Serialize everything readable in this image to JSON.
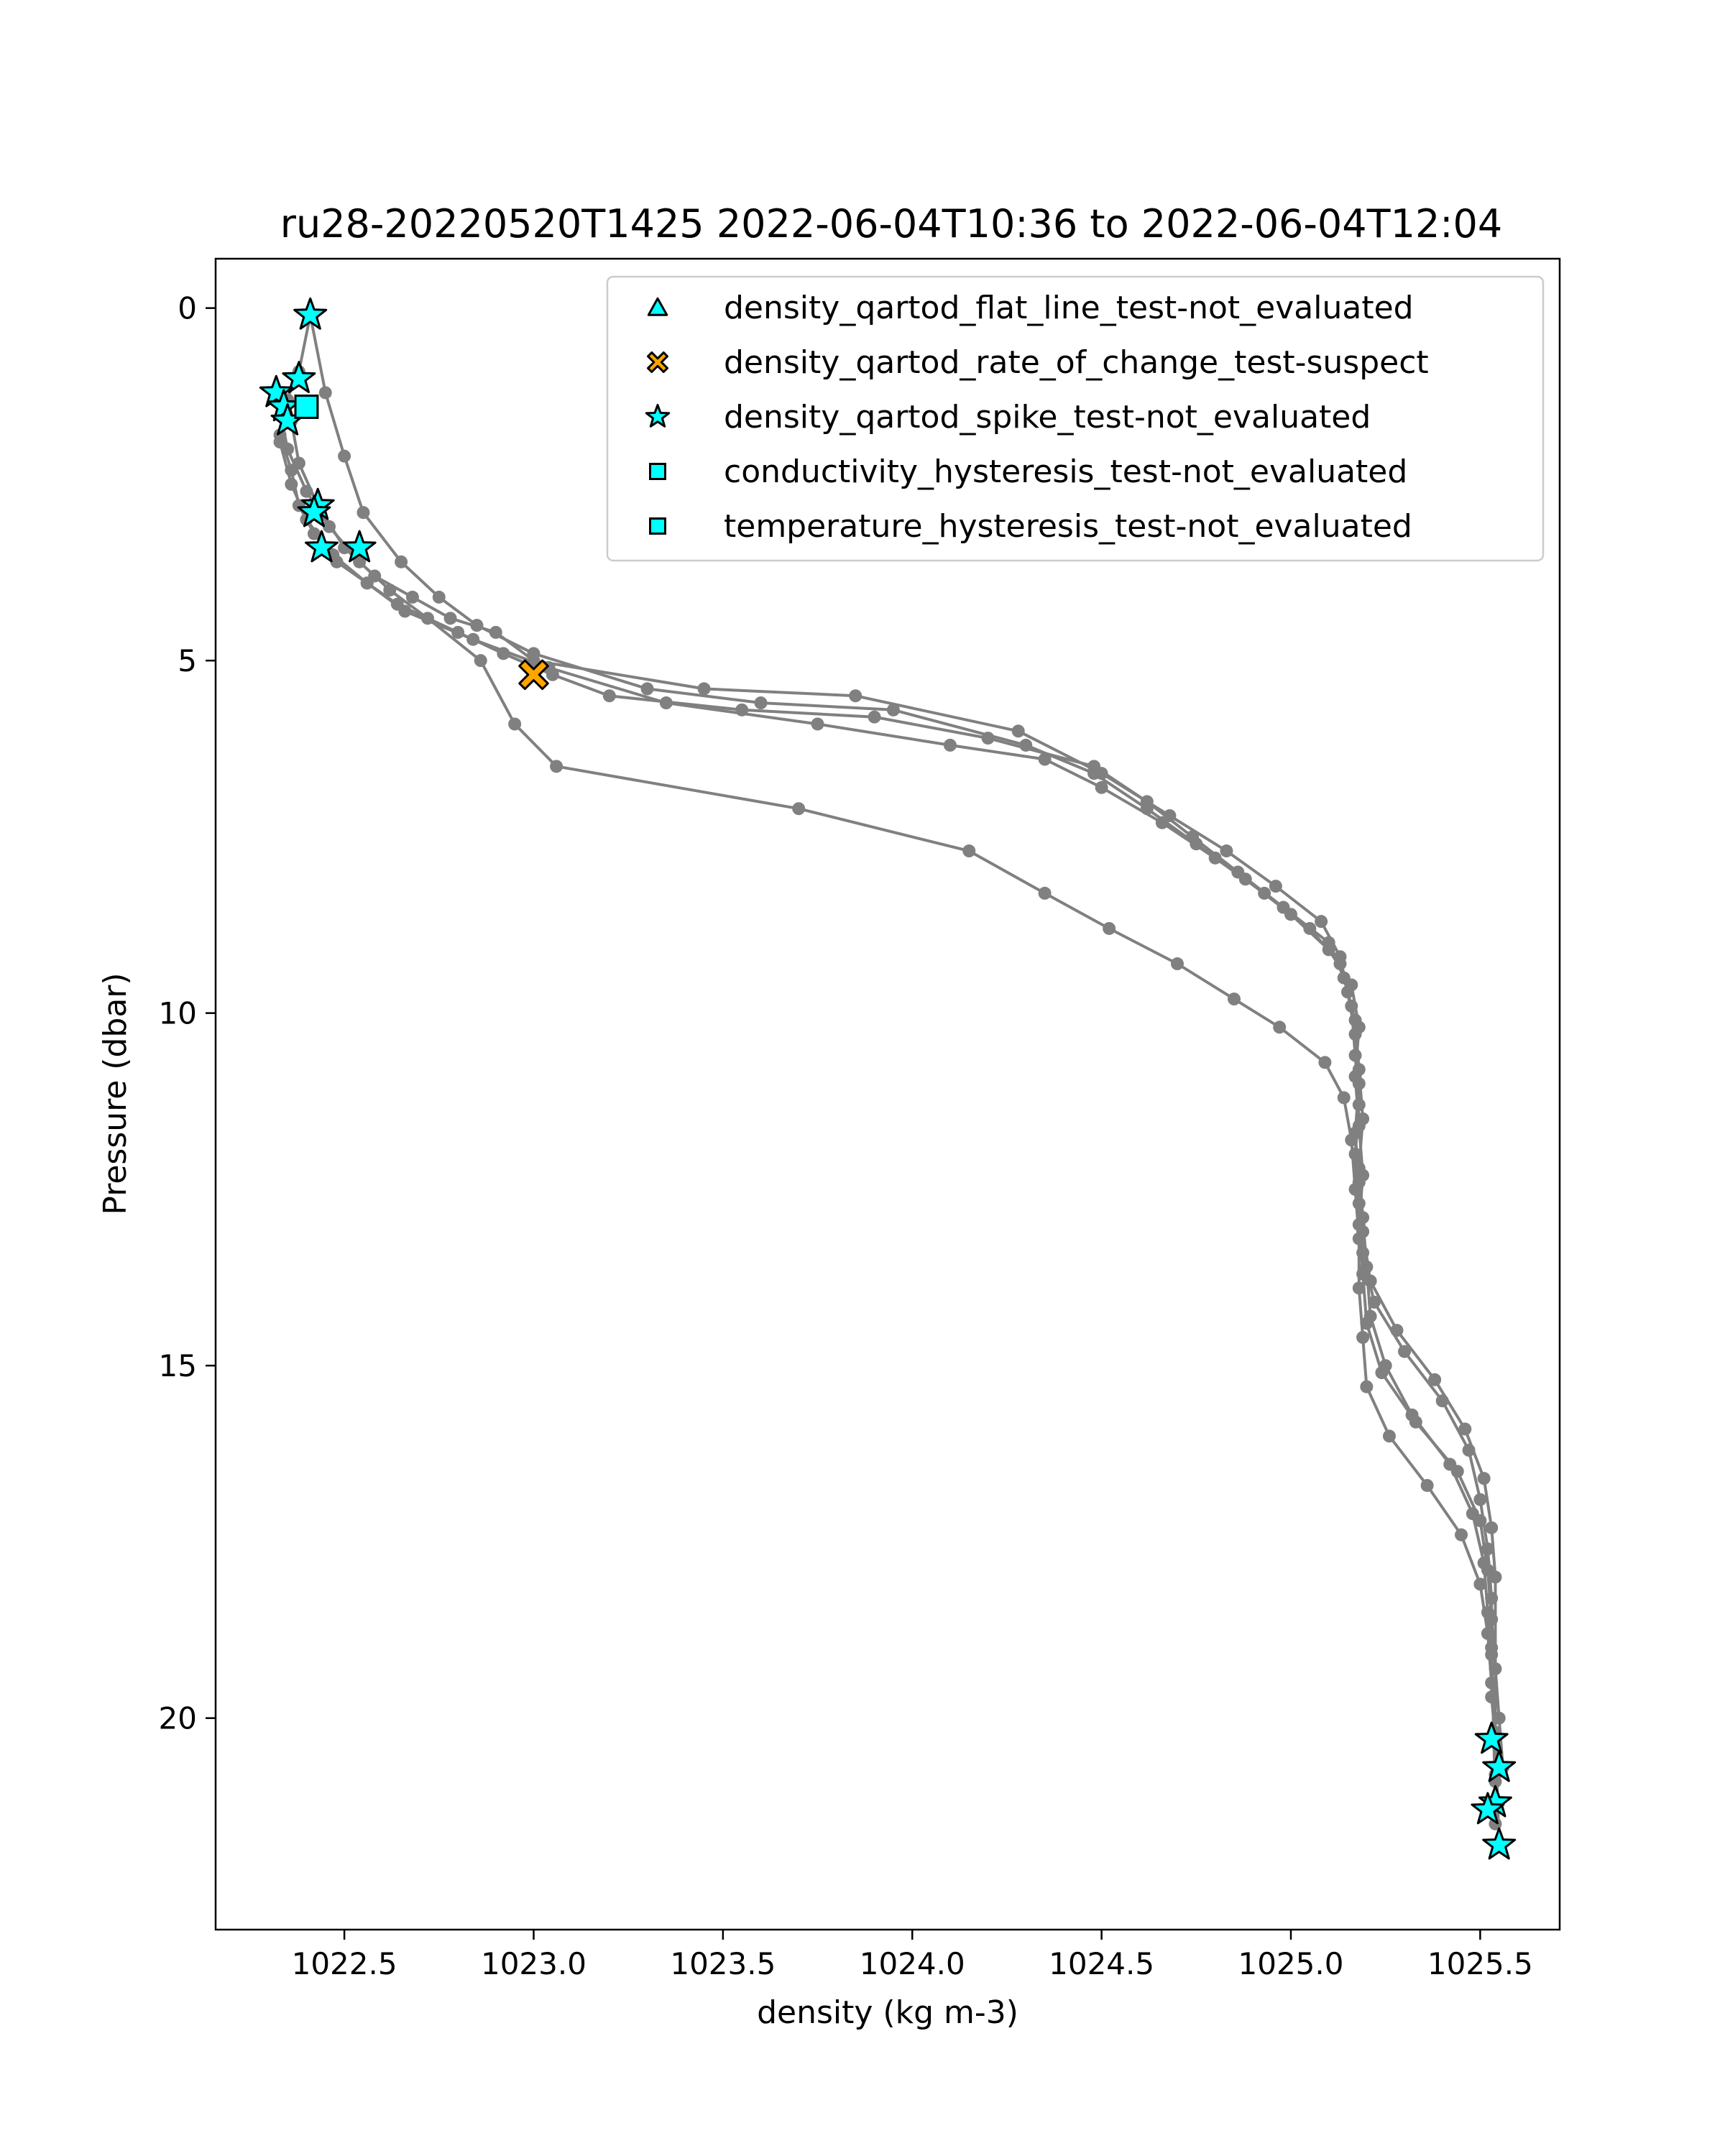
{
  "chart_data": {
    "type": "scatter",
    "title": "ru28-20220520T1425 2022-06-04T10:36 to 2022-06-04T12:04",
    "xlabel": "density (kg m-3)",
    "ylabel": "Pressure (dbar)",
    "xlim": [
      1022.16,
      1025.71
    ],
    "ylim": [
      23.0,
      -0.7
    ],
    "y_inverted": true,
    "grid": false,
    "legend_position": "top-right",
    "x_ticks": [
      "1022.5",
      "1023.0",
      "1023.5",
      "1024.0",
      "1024.5",
      "1025.0",
      "1025.5"
    ],
    "y_ticks": [
      "0",
      "5",
      "10",
      "15",
      "20"
    ],
    "colors": {
      "profile": "#808080",
      "not_evaluated": "#00ffff",
      "suspect": "#ffa500",
      "edge": "#000000"
    },
    "profiles": [
      {
        "x": [
          1022.41,
          1022.38,
          1022.34,
          1022.33,
          1022.36,
          1022.38,
          1022.42,
          1022.48,
          1022.56,
          1022.64,
          1022.8,
          1022.92,
          1023.05,
          1023.2,
          1023.55,
          1023.9,
          1024.2,
          1024.48,
          1024.62,
          1024.74,
          1024.86,
          1024.98,
          1025.1,
          1025.14,
          1025.17,
          1025.18,
          1025.19,
          1025.18,
          1025.19,
          1025.2,
          1025.21,
          1025.25,
          1025.32,
          1025.42,
          1025.48,
          1025.51,
          1025.52,
          1025.53,
          1025.53,
          1025.54,
          1025.54,
          1025.54
        ],
        "y": [
          0.1,
          0.9,
          1.4,
          1.8,
          2.3,
          2.8,
          3.2,
          3.6,
          3.9,
          4.2,
          4.6,
          4.9,
          5.2,
          5.5,
          5.7,
          5.8,
          6.1,
          6.5,
          7.0,
          7.5,
          8.0,
          8.5,
          9.0,
          9.5,
          10.1,
          10.8,
          11.5,
          12.2,
          12.9,
          13.6,
          14.3,
          15.0,
          15.7,
          16.4,
          17.1,
          17.8,
          18.5,
          19.1,
          19.7,
          20.3,
          20.9,
          21.5
        ]
      },
      {
        "x": [
          1022.41,
          1022.45,
          1022.5,
          1022.55,
          1022.65,
          1022.75,
          1022.85,
          1023.0,
          1023.3,
          1023.6,
          1023.95,
          1024.3,
          1024.48,
          1024.62,
          1024.75,
          1024.88,
          1025.0,
          1025.1,
          1025.16,
          1025.18,
          1025.17,
          1025.18,
          1025.19,
          1025.18,
          1025.19,
          1025.2,
          1025.24,
          1025.33,
          1025.44,
          1025.5,
          1025.52,
          1025.53,
          1025.54,
          1025.55,
          1025.56
        ],
        "y": [
          0.1,
          1.2,
          2.1,
          2.9,
          3.6,
          4.1,
          4.5,
          4.9,
          5.4,
          5.6,
          5.7,
          6.2,
          6.6,
          7.1,
          7.6,
          8.1,
          8.6,
          9.1,
          9.6,
          10.2,
          10.9,
          11.6,
          12.3,
          13.0,
          13.7,
          14.4,
          15.1,
          15.8,
          16.5,
          17.2,
          17.9,
          18.6,
          19.3,
          20.0,
          20.7
        ]
      },
      {
        "x": [
          1022.35,
          1022.33,
          1022.36,
          1022.4,
          1022.47,
          1022.56,
          1022.66,
          1022.84,
          1023.04,
          1023.35,
          1023.75,
          1024.1,
          1024.35,
          1024.5,
          1024.66,
          1024.8,
          1024.93,
          1025.05,
          1025.13,
          1025.16,
          1025.17,
          1025.18,
          1025.17,
          1025.18,
          1025.19,
          1025.22,
          1025.3,
          1025.4,
          1025.47,
          1025.5,
          1025.52,
          1025.53,
          1025.53,
          1025.54
        ],
        "y": [
          1.3,
          1.9,
          2.5,
          3.0,
          3.5,
          3.9,
          4.3,
          4.7,
          5.1,
          5.6,
          5.9,
          6.2,
          6.4,
          6.8,
          7.3,
          7.8,
          8.3,
          8.8,
          9.3,
          9.9,
          10.6,
          11.3,
          12.0,
          12.7,
          13.4,
          14.1,
          14.8,
          15.5,
          16.2,
          16.9,
          17.6,
          18.3,
          19.0,
          21.2
        ]
      },
      {
        "x": [
          1022.32,
          1022.35,
          1022.4,
          1022.46,
          1022.54,
          1022.62,
          1022.72,
          1022.86,
          1022.95,
          1023.06,
          1023.7,
          1024.15,
          1024.35,
          1024.52,
          1024.7,
          1024.85,
          1024.97,
          1025.09,
          1025.14,
          1025.16,
          1025.17,
          1025.18,
          1025.18,
          1025.19,
          1025.2,
          1025.26,
          1025.36,
          1025.45,
          1025.5,
          1025.52,
          1025.53,
          1025.54,
          1025.55
        ],
        "y": [
          1.2,
          2.0,
          2.6,
          3.1,
          3.6,
          4.0,
          4.4,
          5.0,
          5.9,
          6.5,
          7.1,
          7.7,
          8.3,
          8.8,
          9.3,
          9.8,
          10.2,
          10.7,
          11.2,
          11.8,
          12.5,
          13.2,
          13.9,
          14.6,
          15.3,
          16.0,
          16.7,
          17.4,
          18.1,
          18.8,
          19.5,
          20.2,
          21.8
        ]
      },
      {
        "x": [
          1022.36,
          1022.38,
          1022.43,
          1022.5,
          1022.58,
          1022.68,
          1022.78,
          1022.9,
          1023.0,
          1023.45,
          1023.85,
          1024.28,
          1024.5,
          1024.68,
          1024.83,
          1024.96,
          1025.08,
          1025.13,
          1025.15,
          1025.17,
          1025.18,
          1025.17,
          1025.18,
          1025.19,
          1025.21,
          1025.28,
          1025.38,
          1025.46,
          1025.51,
          1025.53,
          1025.54,
          1025.54
        ],
        "y": [
          1.6,
          2.2,
          2.8,
          3.4,
          3.8,
          4.1,
          4.4,
          4.6,
          5.0,
          5.4,
          5.5,
          6.0,
          6.6,
          7.2,
          7.7,
          8.2,
          8.7,
          9.2,
          9.7,
          10.3,
          11.0,
          11.7,
          12.4,
          13.1,
          13.8,
          14.5,
          15.2,
          15.9,
          16.6,
          17.3,
          18.0,
          20.8
        ]
      }
    ],
    "legend": [
      {
        "marker": "triangle",
        "color": "#00ffff",
        "label": "density_qartod_flat_line_test-not_evaluated"
      },
      {
        "marker": "x",
        "color": "#ffa500",
        "label": "density_qartod_rate_of_change_test-suspect"
      },
      {
        "marker": "star",
        "color": "#00ffff",
        "label": "density_qartod_spike_test-not_evaluated"
      },
      {
        "marker": "square",
        "color": "#00ffff",
        "label": "conductivity_hysteresis_test-not_evaluated"
      },
      {
        "marker": "square",
        "color": "#00ffff",
        "label": "temperature_hysteresis_test-not_evaluated"
      }
    ],
    "flagged_points": {
      "density_qartod_rate_of_change_test-suspect": [
        {
          "x": 1023.0,
          "y": 5.2
        }
      ],
      "density_qartod_spike_test-not_evaluated": [
        {
          "x": 1022.41,
          "y": 0.1
        },
        {
          "x": 1022.38,
          "y": 1.0
        },
        {
          "x": 1022.32,
          "y": 1.2
        },
        {
          "x": 1022.34,
          "y": 1.4
        },
        {
          "x": 1022.35,
          "y": 1.6
        },
        {
          "x": 1022.43,
          "y": 2.8
        },
        {
          "x": 1022.42,
          "y": 2.9
        },
        {
          "x": 1022.44,
          "y": 3.4
        },
        {
          "x": 1022.54,
          "y": 3.4
        },
        {
          "x": 1025.53,
          "y": 20.3
        },
        {
          "x": 1025.55,
          "y": 20.7
        },
        {
          "x": 1025.54,
          "y": 21.2
        },
        {
          "x": 1025.52,
          "y": 21.3
        },
        {
          "x": 1025.55,
          "y": 21.8
        }
      ],
      "conductivity_hysteresis_test-not_evaluated": [
        {
          "x": 1022.4,
          "y": 1.4
        }
      ],
      "temperature_hysteresis_test-not_evaluated": [
        {
          "x": 1022.4,
          "y": 1.4
        }
      ]
    }
  }
}
